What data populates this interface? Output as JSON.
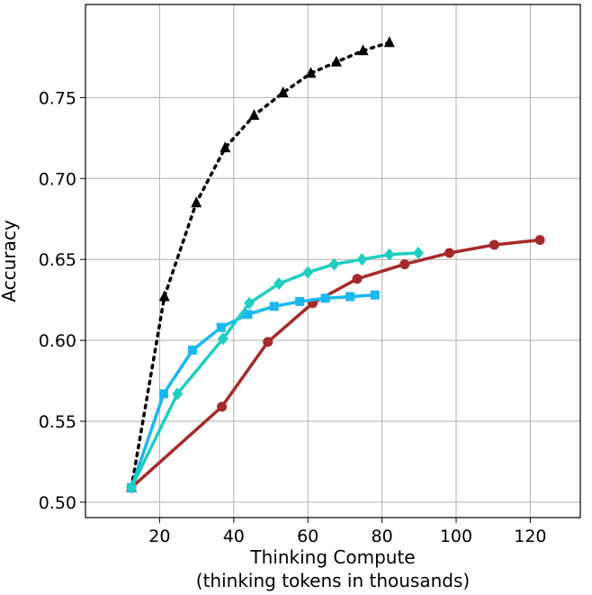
{
  "chart_data": {
    "type": "line",
    "title": "",
    "xlabel": "Thinking Compute",
    "xlabel_line2": "(thinking tokens in thousands)",
    "ylabel": "Accuracy",
    "xlim": [
      0,
      133.5
    ],
    "ylim": [
      0.4905,
      0.8075
    ],
    "xticks": [
      20,
      40,
      60,
      80,
      100,
      120
    ],
    "xtick_labels": [
      "20",
      "40",
      "60",
      "80",
      "100",
      "120"
    ],
    "yticks": [
      0.5,
      0.55,
      0.6,
      0.65,
      0.7,
      0.75
    ],
    "ytick_labels": [
      "0.50",
      "0.55",
      "0.60",
      "0.65",
      "0.70",
      "0.75"
    ],
    "grid": true,
    "legend": "none",
    "series": [
      {
        "name": "black-dotted-triangles",
        "color": "#000000",
        "marker": "triangle",
        "dash": "dotted",
        "x": [
          12.4,
          21.3,
          29.9,
          37.7,
          45.5,
          53.3,
          60.8,
          67.7,
          74.9,
          82.0
        ],
        "y": [
          0.509,
          0.627,
          0.685,
          0.719,
          0.739,
          0.753,
          0.765,
          0.772,
          0.779,
          0.784
        ]
      },
      {
        "name": "red-circles",
        "color": "#a52a2a",
        "marker": "circle",
        "dash": "solid",
        "x": [
          12.4,
          36.8,
          49.2,
          61.3,
          73.3,
          86.1,
          98.2,
          110.3,
          122.6
        ],
        "y": [
          0.509,
          0.559,
          0.599,
          0.623,
          0.638,
          0.647,
          0.654,
          0.659,
          0.662
        ]
      },
      {
        "name": "blue-squares",
        "color": "#1ab8ee",
        "marker": "square",
        "dash": "solid",
        "x": [
          12.4,
          21.1,
          28.9,
          36.6,
          43.8,
          50.9,
          57.8,
          64.7,
          71.4,
          78.1
        ],
        "y": [
          0.509,
          0.567,
          0.594,
          0.608,
          0.616,
          0.621,
          0.624,
          0.626,
          0.627,
          0.628
        ]
      },
      {
        "name": "turquoise-diamonds",
        "color": "#1fcec0",
        "marker": "diamond",
        "dash": "solid",
        "x": [
          12.4,
          24.8,
          37.1,
          44.2,
          52.2,
          60.0,
          67.1,
          74.6,
          82.0,
          89.8
        ],
        "y": [
          0.509,
          0.567,
          0.601,
          0.623,
          0.635,
          0.642,
          0.647,
          0.65,
          0.653,
          0.654
        ]
      }
    ]
  }
}
